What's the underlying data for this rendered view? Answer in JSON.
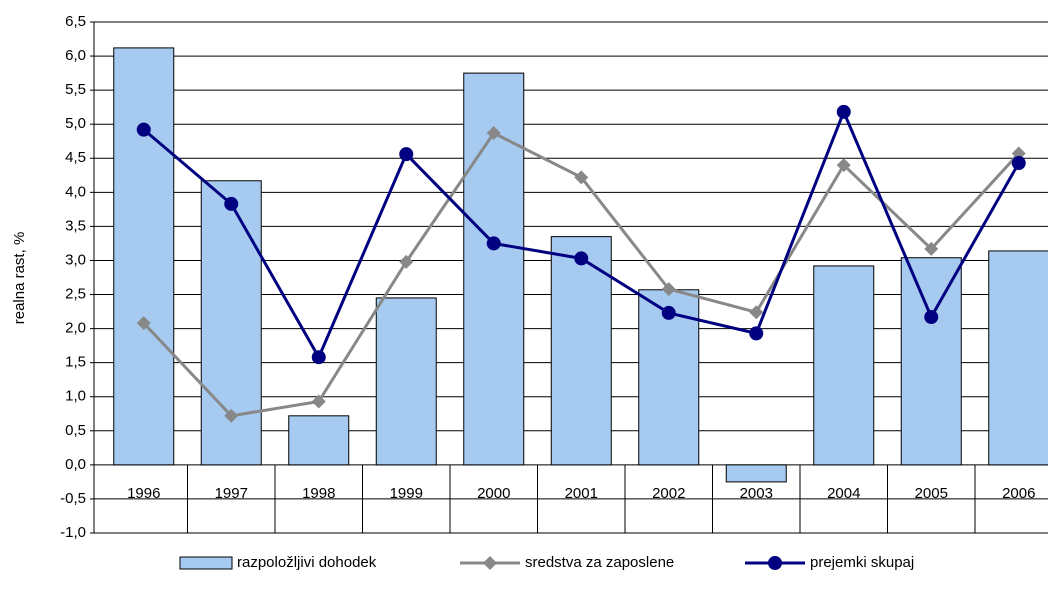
{
  "chart_data": {
    "type": "bar_line",
    "y_label": "realna rast, %",
    "categories": [
      "1996",
      "1997",
      "1998",
      "1999",
      "2000",
      "2001",
      "2002",
      "2003",
      "2004",
      "2005",
      "2006"
    ],
    "series": [
      {
        "name": "razpoložljivi dohodek",
        "type": "bar",
        "color": "#a6caf0",
        "values": [
          6.12,
          4.17,
          0.72,
          2.45,
          5.75,
          3.35,
          2.57,
          -0.25,
          2.92,
          3.04,
          3.14
        ]
      },
      {
        "name": "sredstva za zaposlene",
        "type": "line",
        "marker": "diamond",
        "color": "#888888",
        "values": [
          2.08,
          0.72,
          0.93,
          2.98,
          4.87,
          4.22,
          2.58,
          2.24,
          4.4,
          3.17,
          4.57
        ]
      },
      {
        "name": "prejemki skupaj",
        "type": "line",
        "marker": "circle",
        "color": "#000080",
        "values": [
          4.92,
          3.83,
          1.58,
          4.56,
          3.25,
          3.03,
          2.23,
          1.93,
          5.18,
          2.17,
          4.43
        ]
      }
    ],
    "ylim": [
      -1.0,
      6.5
    ],
    "yticks": [
      {
        "value": -1.0,
        "label": "-1,0"
      },
      {
        "value": -0.5,
        "label": "-0,5"
      },
      {
        "value": 0,
        "label": "0,0"
      },
      {
        "value": 0.5,
        "label": "0,5"
      },
      {
        "value": 1.0,
        "label": "1,0"
      },
      {
        "value": 1.5,
        "label": "1,5"
      },
      {
        "value": 2.0,
        "label": "2,0"
      },
      {
        "value": 2.5,
        "label": "2,5"
      },
      {
        "value": 3.0,
        "label": "3,0"
      },
      {
        "value": 3.5,
        "label": "3,5"
      },
      {
        "value": 4.0,
        "label": "4,0"
      },
      {
        "value": 4.5,
        "label": "4,5"
      },
      {
        "value": 5.0,
        "label": "5,0"
      },
      {
        "value": 5.5,
        "label": "5,5"
      },
      {
        "value": 6.0,
        "label": "6,0"
      },
      {
        "value": 6.5,
        "label": "6,5"
      }
    ],
    "grid": true
  }
}
